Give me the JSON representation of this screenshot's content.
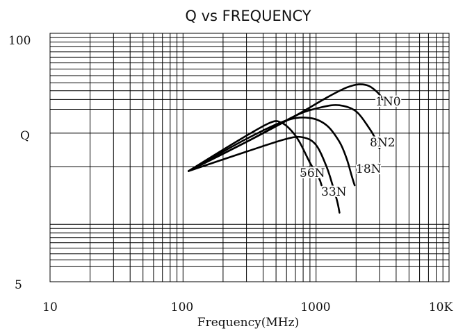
{
  "chart_data": {
    "type": "line",
    "title": "Q vs FREQUENCY",
    "xlabel": "Frequency(MHz)",
    "ylabel": "Q",
    "xscale": "log",
    "yscale": "log",
    "xlim": [
      10,
      10000
    ],
    "ylim": [
      5,
      100
    ],
    "grid": true,
    "x_tick_labels": [
      "10",
      "100",
      "1000",
      "10K"
    ],
    "y_tick_labels": [
      "100",
      "5"
    ],
    "series": [
      {
        "name": "1N0",
        "x": [
          110,
          300,
          700,
          1200,
          1700,
          2100,
          2500,
          2900,
          3200
        ],
        "y": [
          19,
          27,
          37,
          46,
          52,
          54,
          53,
          49,
          45
        ]
      },
      {
        "name": "8N2",
        "x": [
          110,
          300,
          700,
          1100,
          1500,
          2000,
          2500,
          2800,
          3000
        ],
        "y": [
          19,
          27,
          37,
          41,
          42,
          39,
          32,
          28,
          25
        ]
      },
      {
        "name": "18N",
        "x": [
          110,
          300,
          600,
          900,
          1200,
          1500,
          1700,
          1850,
          1950
        ],
        "y": [
          19,
          28,
          35,
          36,
          33,
          27,
          22,
          18,
          16
        ]
      },
      {
        "name": "33N",
        "x": [
          110,
          300,
          600,
          800,
          1000,
          1200,
          1350,
          1450,
          1500
        ],
        "y": [
          19,
          24,
          28,
          28.5,
          26,
          20,
          15.5,
          13,
          11.5
        ]
      },
      {
        "name": "56N",
        "x": [
          110,
          250,
          450,
          550,
          650,
          750,
          900,
          1050,
          1100
        ],
        "y": [
          19,
          27,
          34,
          34,
          31,
          27,
          21,
          17.5,
          16
        ]
      }
    ]
  }
}
